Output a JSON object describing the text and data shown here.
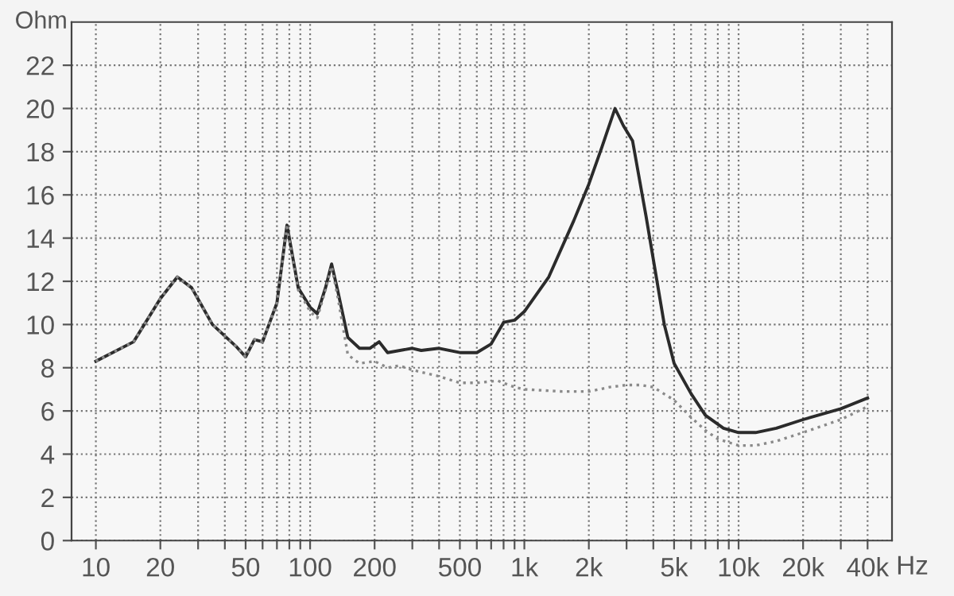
{
  "chart_data": {
    "type": "line",
    "ylabel": "Ohm",
    "log": "x",
    "xlabel": "Hz",
    "grid": true,
    "marker": "none",
    "xlim": [
      7.7,
      52000
    ],
    "ylim": [
      0,
      24
    ],
    "xticks": [
      10,
      20,
      {
        "value": 30,
        "label": null
      },
      {
        "value": 40,
        "label": null
      },
      50,
      {
        "value": 60,
        "label": null
      },
      {
        "value": 70,
        "label": null
      },
      {
        "value": 80,
        "label": null
      },
      {
        "value": 90,
        "label": null
      },
      100,
      200,
      {
        "value": 300,
        "label": null
      },
      {
        "value": 400,
        "label": null
      },
      500,
      {
        "value": 600,
        "label": null
      },
      {
        "value": 700,
        "label": null
      },
      {
        "value": 800,
        "label": null
      },
      {
        "value": 900,
        "label": null
      },
      {
        "value": 1000,
        "label": "1k"
      },
      {
        "value": 2000,
        "label": "2k"
      },
      {
        "value": 3000,
        "label": null
      },
      {
        "value": 4000,
        "label": null
      },
      {
        "value": 5000,
        "label": "5k"
      },
      {
        "value": 6000,
        "label": null
      },
      {
        "value": 7000,
        "label": null
      },
      {
        "value": 8000,
        "label": null
      },
      {
        "value": 9000,
        "label": null
      },
      {
        "value": 10000,
        "label": "10k"
      },
      {
        "value": 20000,
        "label": "20k"
      },
      {
        "value": 30000,
        "label": null
      },
      {
        "value": 40000,
        "label": "40k"
      }
    ],
    "yticks": [
      0,
      2,
      4,
      6,
      8,
      10,
      12,
      14,
      16,
      18,
      20,
      22
    ],
    "series": [
      {
        "color": "#2b2b2b",
        "line_style": "solid",
        "x": [
          10,
          15,
          20,
          24,
          28,
          35,
          45,
          50,
          55,
          60,
          70,
          78,
          88,
          100,
          108,
          118,
          126,
          135,
          150,
          170,
          190,
          210,
          230,
          300,
          330,
          400,
          500,
          600,
          700,
          800,
          900,
          1000,
          1300,
          1700,
          2000,
          2300,
          2650,
          2900,
          3200,
          3700,
          4500,
          5000,
          6000,
          7000,
          8500,
          10000,
          12000,
          15000,
          20000,
          30000,
          40000
        ],
        "values": [
          8.3,
          9.2,
          11.2,
          12.2,
          11.7,
          10,
          9,
          8.5,
          9.3,
          9.2,
          11,
          14.6,
          11.7,
          10.8,
          10.5,
          11.7,
          12.8,
          11.5,
          9.4,
          8.9,
          8.9,
          9.2,
          8.7,
          8.9,
          8.8,
          8.9,
          8.7,
          8.7,
          9.1,
          10.1,
          10.2,
          10.6,
          12.2,
          14.8,
          16.5,
          18.2,
          20,
          19.2,
          18.5,
          15,
          10,
          8.2,
          6.8,
          5.8,
          5.2,
          5,
          5,
          5.2,
          5.6,
          6.1,
          6.6
        ]
      },
      {
        "color": "#8a8a8a",
        "line_style": "dotted",
        "x": [
          10,
          15,
          20,
          24,
          28,
          35,
          45,
          50,
          55,
          60,
          70,
          78,
          88,
          100,
          108,
          118,
          126,
          135,
          150,
          170,
          200,
          230,
          260,
          300,
          400,
          500,
          600,
          750,
          900,
          1000,
          1500,
          2000,
          2500,
          3000,
          3500,
          4000,
          5000,
          6000,
          7000,
          8000,
          10000,
          12000,
          15000,
          20000,
          30000,
          40000
        ],
        "values": [
          8.3,
          9.2,
          11.2,
          12.2,
          11.7,
          10,
          9,
          8.5,
          9.3,
          9.2,
          11,
          14.5,
          11.6,
          10.6,
          10.3,
          11.6,
          12.7,
          11.2,
          8.6,
          8.2,
          8.3,
          8,
          8.1,
          7.9,
          7.6,
          7.3,
          7.3,
          7.4,
          7.1,
          7,
          6.9,
          6.9,
          7.1,
          7.2,
          7.2,
          7.1,
          6.5,
          5.7,
          5.1,
          4.7,
          4.4,
          4.4,
          4.6,
          5,
          5.6,
          6.2
        ]
      }
    ]
  }
}
